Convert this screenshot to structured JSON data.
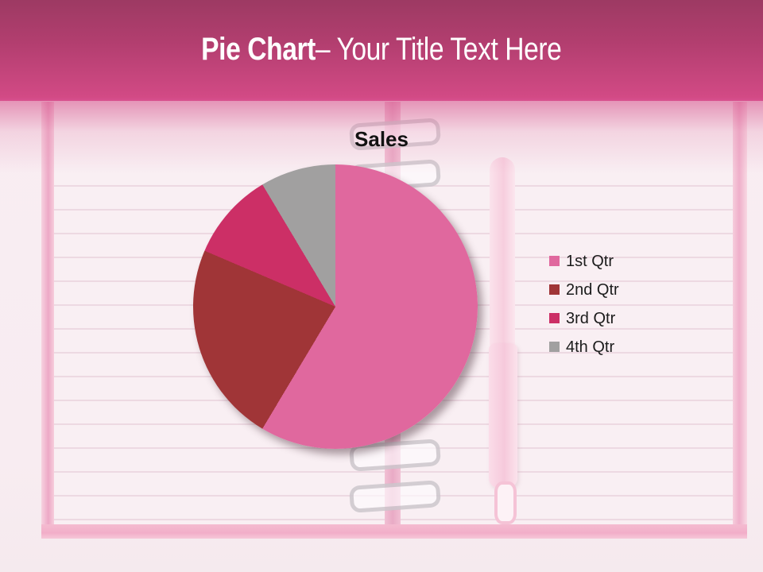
{
  "header": {
    "title_bold": "Pie Chart",
    "title_rest": "– Your Title Text Here"
  },
  "chart_data": {
    "type": "pie",
    "title": "Sales",
    "categories": [
      "1st Qtr",
      "2nd Qtr",
      "3rd Qtr",
      "4th Qtr"
    ],
    "values": [
      8.2,
      3.2,
      1.4,
      1.2
    ],
    "percentages": [
      58.6,
      22.9,
      10.0,
      8.6
    ],
    "colors": [
      "#e0689e",
      "#a03537",
      "#cc2f66",
      "#a1a0a0"
    ],
    "start_angle_deg": 0,
    "legend_position": "right",
    "data_labels": false
  },
  "theme": {
    "header_gradient_top": "#9d3a63",
    "header_gradient_bottom": "#d24a85",
    "title_text_color": "#ffffff",
    "chart_text_color": "#1c1c1c",
    "notebook_pink": "#f2aec9",
    "page_color": "#f9eff3"
  }
}
